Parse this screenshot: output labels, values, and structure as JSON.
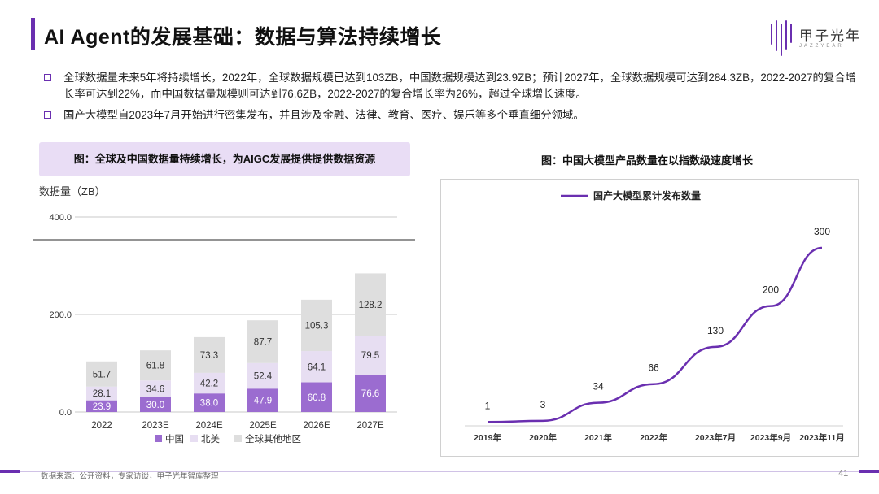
{
  "header": {
    "title": "AI Agent的发展基础：数据与算法持续增长",
    "logo_text": "甲子光年",
    "logo_sub": "JAZZYEAR"
  },
  "bullets": [
    "全球数据量未来5年将持续增长，2022年，全球数据规模已达到103ZB，中国数据规模达到23.9ZB；预计2027年，全球数据规模可达到284.3ZB，2022-2027的复合增长率可达到22%，而中国数据量规模则可达到76.6ZB，2022-2027的复合增长率为26%，超过全球增长速度。",
    "国产大模型自2023年7月开始进行密集发布，并且涉及金融、法律、教育、医疗、娱乐等多个垂直细分领域。"
  ],
  "left_caption": "图：全球及中国数据量持续增长，为AIGC发展提供提供数据资源",
  "right_caption": "图：中国大模型产品数量在以指数级速度增长",
  "chart_data": [
    {
      "type": "bar",
      "stacked": true,
      "ylabel": "数据量（ZB）",
      "ylim": [
        0,
        400
      ],
      "yticks": [
        "0.0",
        "200.0",
        "400.0"
      ],
      "categories": [
        "2022",
        "2023E",
        "2024E",
        "2025E",
        "2026E",
        "2027E"
      ],
      "series": [
        {
          "name": "中国",
          "color": "#9b6cd0",
          "values": [
            23.9,
            30.0,
            38.0,
            47.9,
            60.8,
            76.6
          ],
          "labels": [
            "23.9",
            "30.0",
            "38.0",
            "47.9",
            "60.8",
            "76.6"
          ]
        },
        {
          "name": "北美",
          "color": "#e7def2",
          "values": [
            28.1,
            34.6,
            42.2,
            52.4,
            64.1,
            79.5
          ],
          "labels": [
            "28.1",
            "34.6",
            "42.2",
            "52.4",
            "64.1",
            "79.5"
          ]
        },
        {
          "name": "全球其他地区",
          "color": "#dedede",
          "values": [
            51.7,
            61.8,
            73.3,
            87.7,
            105.3,
            128.2
          ],
          "labels": [
            "51.7",
            "61.8",
            "73.3",
            "87.7",
            "105.3",
            "128.2"
          ]
        }
      ]
    },
    {
      "type": "line",
      "series_name": "国产大模型累计发布数量",
      "color": "#6a2fb0",
      "categories": [
        "2019年",
        "2020年",
        "2021年",
        "2022年",
        "2023年7月",
        "2023年9月",
        "2023年11月"
      ],
      "points": [
        {
          "x": "2019年",
          "y": 1,
          "label": "1"
        },
        {
          "x": "2020年",
          "y": 3,
          "label": "3"
        },
        {
          "x": "2021年",
          "y": 34,
          "label": "34"
        },
        {
          "x": "2022年",
          "y": 66,
          "label": "66"
        },
        {
          "x": "2023年7月",
          "y": 130,
          "label": "130"
        },
        {
          "x": "2023年9月",
          "y": 200,
          "label": "200"
        },
        {
          "x": "2023年11月",
          "y": 300,
          "label": "300"
        }
      ]
    }
  ],
  "footer": {
    "source": "数据来源：公开资料，专家访谈，甲子光年智库整理",
    "page": "41"
  }
}
